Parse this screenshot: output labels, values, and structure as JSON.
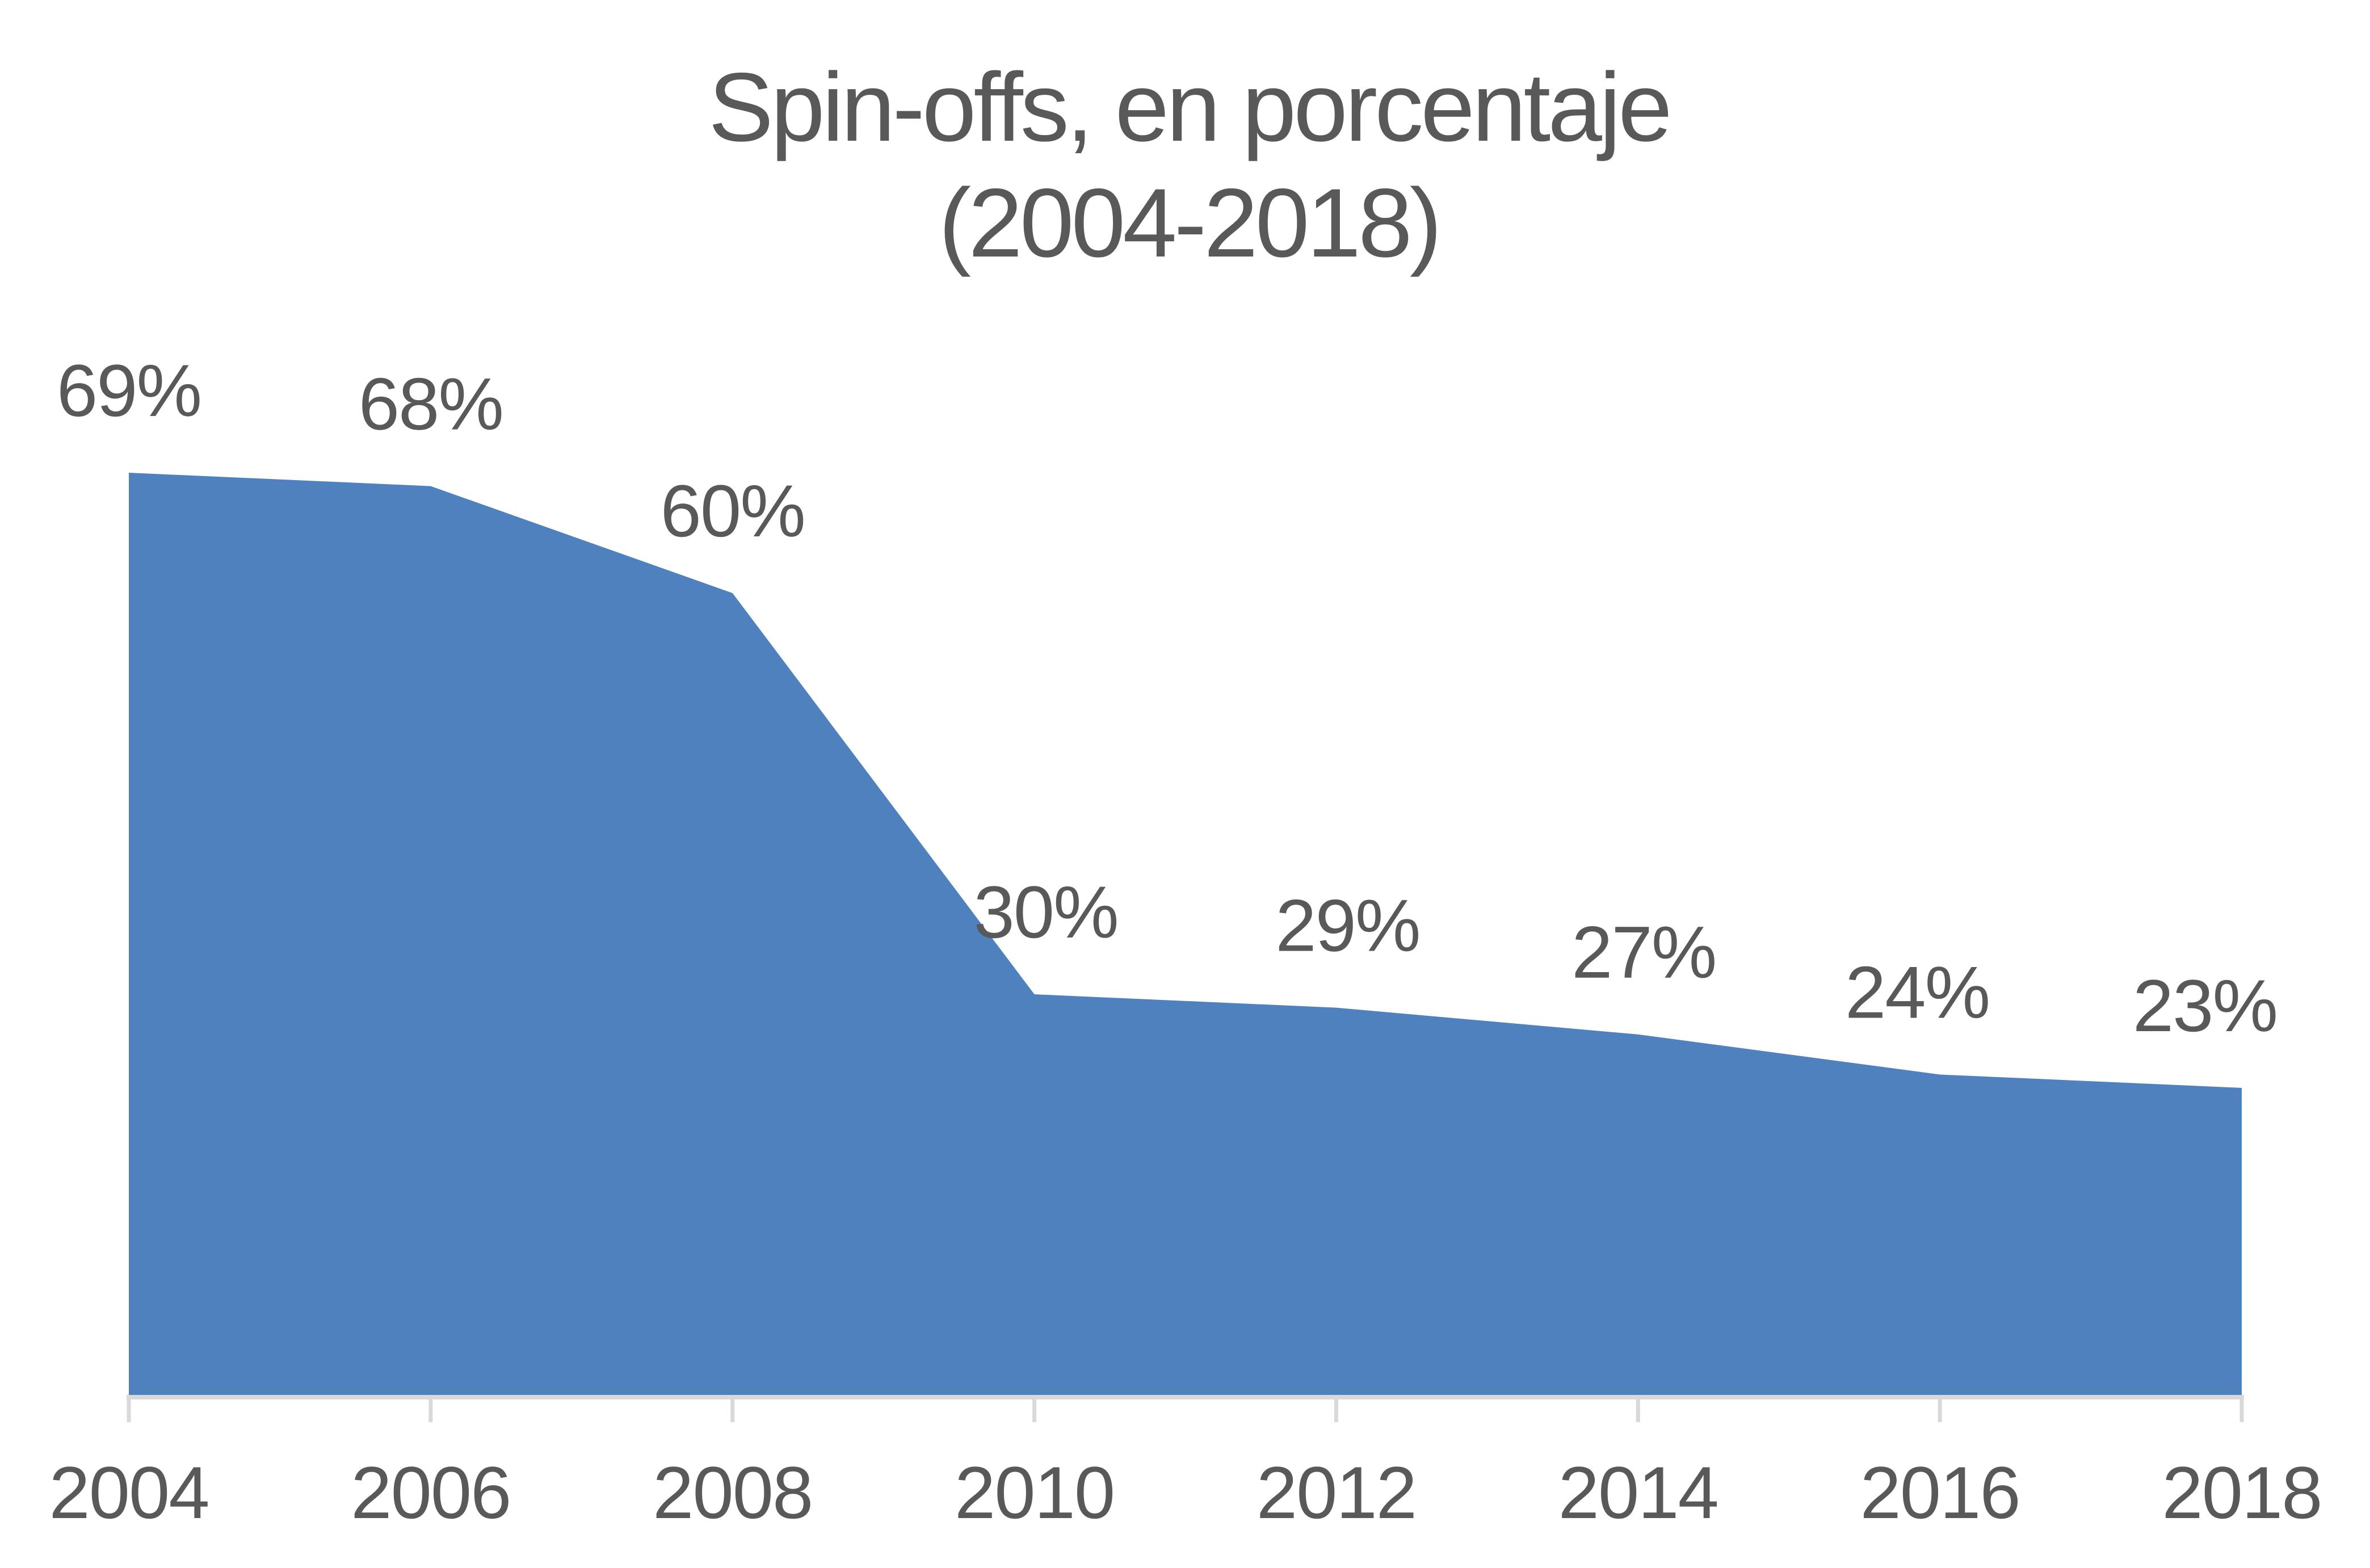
{
  "chart_data": {
    "type": "area",
    "title_line1": "Spin-offs, en porcentaje",
    "title_line2": "(2004-2018)",
    "categories": [
      "2004",
      "2006",
      "2008",
      "2010",
      "2012",
      "2014",
      "2016",
      "2018"
    ],
    "values": [
      69,
      68,
      60,
      30,
      29,
      27,
      24,
      23
    ],
    "data_labels": [
      "69%",
      "68%",
      "60%",
      "30%",
      "29%",
      "27%",
      "24%",
      "23%"
    ],
    "xlabel": "",
    "ylabel": "",
    "grid": false,
    "legend": false,
    "y_axis_visible": false,
    "x_axis_visible": true,
    "colors": {
      "area_fill": "#4e81bd",
      "text": "#595959",
      "axis_line": "#d9d9d9"
    }
  }
}
